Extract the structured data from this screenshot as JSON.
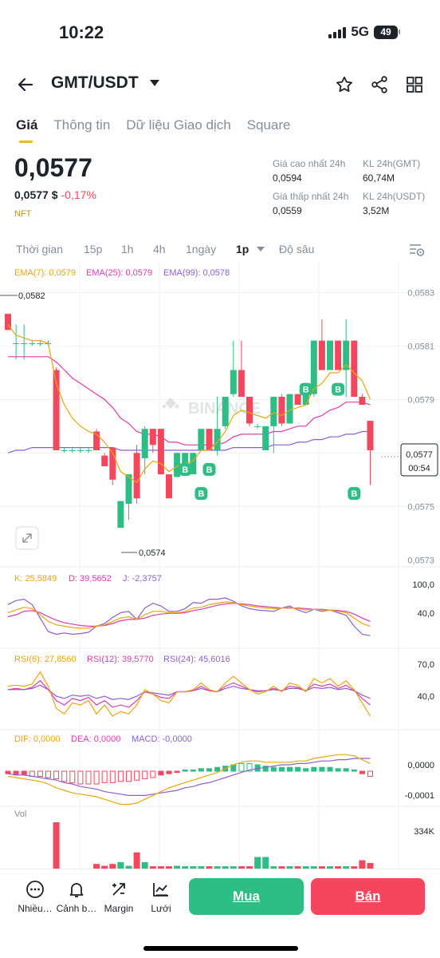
{
  "status": {
    "time": "10:22",
    "network": "5G",
    "battery": "49"
  },
  "header": {
    "pair": "GMT/USDT"
  },
  "tabs": [
    {
      "label": "Giá"
    },
    {
      "label": "Thông tin"
    },
    {
      "label": "Dữ liệu Giao dịch"
    },
    {
      "label": "Square"
    }
  ],
  "ticker": {
    "price": "0,0577",
    "usd_price": "0,0577 $",
    "change": "-0,17%",
    "tag": "NFT",
    "high_label": "Giá cao nhất 24h",
    "high_value": "0,0594",
    "low_label": "Giá thấp nhất 24h",
    "low_value": "0,0559",
    "vol_base_label": "KL 24h(GMT)",
    "vol_base_value": "60,74M",
    "vol_quote_label": "KL 24h(USDT)",
    "vol_quote_value": "3,52M"
  },
  "intervals": {
    "items": [
      "Thời gian",
      "15p",
      "1h",
      "4h",
      "1ngày",
      "1p",
      "Độ sâu"
    ],
    "active": "1p"
  },
  "colors": {
    "up": "#2ebd85",
    "down": "#f6465d",
    "accent": "#f0b90b",
    "ema7": "#e9a70d",
    "ema25": "#e03bb0",
    "ema99": "#8e5fcf"
  },
  "chart_data": {
    "type": "candlestick",
    "legend": {
      "ema7": "EMA(7): 0,0579",
      "ema25": "EMA(25): 0,0579",
      "ema99": "EMA(99): 0,0578"
    },
    "y_ticks": [
      "0,0583",
      "0,0581",
      "0,0579",
      "0,0577",
      "0,0575",
      "0,0573"
    ],
    "ylim": [
      0.05728,
      0.05834
    ],
    "high_marker": "0,0582",
    "low_marker": "0,0574",
    "current_price": "0,0577",
    "countdown": "00:54",
    "watermark": "BINANCE",
    "buy_markers": [
      {
        "index": 22,
        "price": 0.05768
      },
      {
        "index": 24,
        "price": 0.05759
      },
      {
        "index": 25,
        "price": 0.05768
      },
      {
        "index": 37,
        "price": 0.05798
      },
      {
        "index": 41,
        "price": 0.05798
      },
      {
        "index": 43,
        "price": 0.05759
      }
    ],
    "candles": [
      {
        "o": 0.05822,
        "h": 0.05822,
        "l": 0.05816,
        "c": 0.05816
      },
      {
        "o": 0.05811,
        "h": 0.05818,
        "l": 0.05805,
        "c": 0.05811
      },
      {
        "o": 0.05811,
        "h": 0.05818,
        "l": 0.05805,
        "c": 0.05811
      },
      {
        "o": 0.05811,
        "h": 0.05812,
        "l": 0.0581,
        "c": 0.05811
      },
      {
        "o": 0.05811,
        "h": 0.05812,
        "l": 0.0581,
        "c": 0.05811
      },
      {
        "o": 0.05811,
        "h": 0.05812,
        "l": 0.0581,
        "c": 0.05811
      },
      {
        "o": 0.05801,
        "h": 0.05802,
        "l": 0.05771,
        "c": 0.05771
      },
      {
        "o": 0.05771,
        "h": 0.05772,
        "l": 0.0577,
        "c": 0.05771
      },
      {
        "o": 0.05771,
        "h": 0.05772,
        "l": 0.0577,
        "c": 0.05771
      },
      {
        "o": 0.05771,
        "h": 0.05772,
        "l": 0.0577,
        "c": 0.05771
      },
      {
        "o": 0.05771,
        "h": 0.05772,
        "l": 0.0577,
        "c": 0.05771
      },
      {
        "o": 0.05778,
        "h": 0.05779,
        "l": 0.05771,
        "c": 0.05771
      },
      {
        "o": 0.05769,
        "h": 0.0577,
        "l": 0.05765,
        "c": 0.05765
      },
      {
        "o": 0.05772,
        "h": 0.05772,
        "l": 0.05758,
        "c": 0.0576
      },
      {
        "o": 0.05742,
        "h": 0.05752,
        "l": 0.05742,
        "c": 0.05752
      },
      {
        "o": 0.05751,
        "h": 0.05762,
        "l": 0.05745,
        "c": 0.05762
      },
      {
        "o": 0.0577,
        "h": 0.05773,
        "l": 0.05751,
        "c": 0.05753
      },
      {
        "o": 0.05768,
        "h": 0.0578,
        "l": 0.05762,
        "c": 0.05779
      },
      {
        "o": 0.05779,
        "h": 0.05779,
        "l": 0.0577,
        "c": 0.05773
      },
      {
        "o": 0.05779,
        "h": 0.05779,
        "l": 0.05762,
        "c": 0.05762
      },
      {
        "o": 0.05762,
        "h": 0.05762,
        "l": 0.05753,
        "c": 0.05753
      },
      {
        "o": 0.05761,
        "h": 0.0577,
        "l": 0.05761,
        "c": 0.0577
      },
      {
        "o": 0.05762,
        "h": 0.0577,
        "l": 0.05762,
        "c": 0.0577
      },
      {
        "o": 0.05762,
        "h": 0.0577,
        "l": 0.05762,
        "c": 0.0577
      },
      {
        "o": 0.05771,
        "h": 0.05779,
        "l": 0.05771,
        "c": 0.05779
      },
      {
        "o": 0.05779,
        "h": 0.05779,
        "l": 0.05771,
        "c": 0.05771
      },
      {
        "o": 0.05771,
        "h": 0.05791,
        "l": 0.05769,
        "c": 0.05779
      },
      {
        "o": 0.0578,
        "h": 0.05791,
        "l": 0.05779,
        "c": 0.05791
      },
      {
        "o": 0.05792,
        "h": 0.05812,
        "l": 0.05791,
        "c": 0.05801
      },
      {
        "o": 0.05801,
        "h": 0.05812,
        "l": 0.05791,
        "c": 0.05791
      },
      {
        "o": 0.05791,
        "h": 0.05791,
        "l": 0.0578,
        "c": 0.05781
      },
      {
        "o": 0.0578,
        "h": 0.05781,
        "l": 0.05779,
        "c": 0.0578
      },
      {
        "o": 0.05771,
        "h": 0.0578,
        "l": 0.05771,
        "c": 0.0578
      },
      {
        "o": 0.0578,
        "h": 0.05791,
        "l": 0.0577,
        "c": 0.05791
      },
      {
        "o": 0.05791,
        "h": 0.05792,
        "l": 0.0578,
        "c": 0.05781
      },
      {
        "o": 0.05781,
        "h": 0.05792,
        "l": 0.05781,
        "c": 0.05792
      },
      {
        "o": 0.05792,
        "h": 0.05792,
        "l": 0.05788,
        "c": 0.05788
      },
      {
        "o": 0.05788,
        "h": 0.05792,
        "l": 0.05788,
        "c": 0.05792
      },
      {
        "o": 0.05792,
        "h": 0.05812,
        "l": 0.05791,
        "c": 0.05812
      },
      {
        "o": 0.05812,
        "h": 0.0582,
        "l": 0.05801,
        "c": 0.05801
      },
      {
        "o": 0.05801,
        "h": 0.05812,
        "l": 0.05801,
        "c": 0.05812
      },
      {
        "o": 0.05812,
        "h": 0.05812,
        "l": 0.05801,
        "c": 0.05801
      },
      {
        "o": 0.05801,
        "h": 0.0582,
        "l": 0.05791,
        "c": 0.05812
      },
      {
        "o": 0.05812,
        "h": 0.05812,
        "l": 0.05791,
        "c": 0.05791
      },
      {
        "o": 0.05791,
        "h": 0.05792,
        "l": 0.05788,
        "c": 0.05788
      },
      {
        "o": 0.05782,
        "h": 0.05782,
        "l": 0.05758,
        "c": 0.05771
      }
    ],
    "ema7": [
      0.05818,
      0.05814,
      0.05813,
      0.05812,
      0.05812,
      0.05811,
      0.05796,
      0.05788,
      0.05783,
      0.0578,
      0.05778,
      0.05777,
      0.05774,
      0.0577,
      0.05763,
      0.05761,
      0.05759,
      0.05764,
      0.05767,
      0.05766,
      0.05763,
      0.05765,
      0.05766,
      0.05767,
      0.05771,
      0.05771,
      0.05774,
      0.05778,
      0.05784,
      0.05786,
      0.05785,
      0.05784,
      0.05783,
      0.05785,
      0.05784,
      0.05786,
      0.05787,
      0.05788,
      0.05794,
      0.05796,
      0.058,
      0.058,
      0.05803,
      0.058,
      0.05797,
      0.0579
    ],
    "ema25": [
      0.05806,
      0.05806,
      0.05806,
      0.05806,
      0.05806,
      0.05806,
      0.05804,
      0.05801,
      0.05798,
      0.05796,
      0.05794,
      0.05792,
      0.0579,
      0.05787,
      0.05783,
      0.05781,
      0.05778,
      0.05777,
      0.05777,
      0.05776,
      0.05774,
      0.05774,
      0.05773,
      0.05773,
      0.05773,
      0.05773,
      0.05773,
      0.05774,
      0.05776,
      0.05777,
      0.05777,
      0.05777,
      0.05777,
      0.05778,
      0.05778,
      0.05779,
      0.0578,
      0.0578,
      0.05783,
      0.05784,
      0.05786,
      0.05787,
      0.05789,
      0.05789,
      0.05789,
      0.05788
    ],
    "ema99": [
      0.0577,
      0.05771,
      0.05771,
      0.05772,
      0.05772,
      0.05772,
      0.05772,
      0.05772,
      0.05772,
      0.05772,
      0.05772,
      0.05772,
      0.05772,
      0.05772,
      0.05771,
      0.05771,
      0.05771,
      0.05771,
      0.05771,
      0.05771,
      0.05771,
      0.05771,
      0.05771,
      0.05771,
      0.05771,
      0.05771,
      0.05771,
      0.05771,
      0.05772,
      0.05772,
      0.05772,
      0.05772,
      0.05772,
      0.05773,
      0.05773,
      0.05773,
      0.05774,
      0.05774,
      0.05775,
      0.05775,
      0.05776,
      0.05776,
      0.05777,
      0.05777,
      0.05778,
      0.05778
    ],
    "kdj": {
      "legend": {
        "k": "K: 25,5849",
        "d": "D: 39,5652",
        "j": "J: -2,3757"
      },
      "y_ticks": [
        "100,0",
        "40,0"
      ],
      "k": [
        58,
        62,
        66,
        64,
        55,
        45,
        40,
        38,
        36,
        35,
        35,
        38,
        40,
        45,
        50,
        52,
        48,
        55,
        60,
        60,
        58,
        58,
        60,
        65,
        66,
        70,
        72,
        74,
        73,
        70,
        68,
        66,
        65,
        64,
        65,
        66,
        64,
        62,
        63,
        62,
        62,
        60,
        58,
        50,
        42,
        38
      ],
      "d": [
        52,
        55,
        60,
        61,
        58,
        52,
        47,
        43,
        41,
        39,
        38,
        38,
        39,
        42,
        46,
        48,
        48,
        50,
        54,
        56,
        57,
        57,
        58,
        61,
        63,
        66,
        69,
        71,
        72,
        71,
        70,
        68,
        67,
        66,
        65,
        65,
        65,
        64,
        63,
        63,
        62,
        61,
        60,
        56,
        50,
        45
      ],
      "j": [
        70,
        76,
        78,
        70,
        50,
        30,
        26,
        28,
        26,
        27,
        29,
        38,
        42,
        51,
        58,
        60,
        48,
        65,
        72,
        68,
        60,
        60,
        64,
        73,
        72,
        78,
        78,
        80,
        75,
        68,
        64,
        62,
        61,
        60,
        65,
        68,
        62,
        58,
        63,
        60,
        62,
        58,
        54,
        38,
        26,
        24
      ]
    },
    "rsi": {
      "legend": {
        "r6": "RSI(6): 27,8560",
        "r12": "RSI(12): 39,5770",
        "r24": "RSI(24): 45,6016"
      },
      "y_ticks": [
        "70,0",
        "40,0"
      ],
      "r6": [
        55,
        56,
        55,
        57,
        68,
        55,
        35,
        30,
        40,
        38,
        42,
        30,
        38,
        28,
        32,
        30,
        38,
        52,
        48,
        42,
        40,
        50,
        50,
        52,
        58,
        52,
        50,
        58,
        64,
        58,
        52,
        48,
        50,
        55,
        50,
        58,
        56,
        50,
        62,
        58,
        62,
        55,
        60,
        52,
        40,
        28
      ],
      "r12": [
        52,
        53,
        52,
        54,
        60,
        52,
        42,
        38,
        44,
        42,
        45,
        38,
        42,
        36,
        38,
        36,
        42,
        50,
        48,
        45,
        44,
        50,
        50,
        51,
        55,
        51,
        50,
        55,
        58,
        55,
        52,
        50,
        51,
        53,
        51,
        55,
        54,
        51,
        57,
        55,
        57,
        53,
        56,
        51,
        44,
        38
      ],
      "r24": [
        52,
        52,
        52,
        53,
        56,
        52,
        46,
        44,
        47,
        46,
        47,
        44,
        46,
        43,
        44,
        43,
        46,
        50,
        49,
        48,
        47,
        50,
        50,
        51,
        53,
        51,
        50,
        53,
        55,
        53,
        52,
        51,
        51,
        52,
        51,
        53,
        53,
        51,
        54,
        53,
        54,
        52,
        53,
        51,
        47,
        44
      ]
    },
    "macd": {
      "legend": {
        "dif": "DIF: 0,0000",
        "dea": "DEA: 0,0000",
        "macd": "MACD: -0,0000"
      },
      "y_ticks": [
        "0,0000",
        "-0,0001"
      ],
      "hist": [
        -2,
        -3,
        -3,
        -4,
        -4,
        -5,
        -6,
        -8,
        -9,
        -10,
        -10,
        -10,
        -9,
        -9,
        -8,
        -8,
        -7,
        -6,
        -5,
        -3,
        -2,
        -1,
        1,
        1,
        2,
        2,
        3,
        4,
        5,
        6,
        6,
        5,
        4,
        3,
        3,
        3,
        3,
        2,
        3,
        3,
        3,
        2,
        2,
        1,
        -2,
        -4
      ],
      "dif": [
        -4,
        -5,
        -6,
        -7,
        -8,
        -10,
        -13,
        -15,
        -17,
        -18,
        -19,
        -20,
        -22,
        -24,
        -26,
        -26,
        -25,
        -22,
        -19,
        -16,
        -13,
        -11,
        -9,
        -7,
        -5,
        -3,
        -1,
        2,
        5,
        7,
        8,
        8,
        7,
        7,
        7,
        7,
        8,
        8,
        10,
        11,
        12,
        13,
        13,
        12,
        9,
        6
      ],
      "dea": [
        -2,
        -3,
        -3,
        -4,
        -5,
        -6,
        -7,
        -9,
        -10,
        -12,
        -13,
        -14,
        -16,
        -17,
        -18,
        -19,
        -19,
        -19,
        -18,
        -17,
        -16,
        -15,
        -13,
        -12,
        -10,
        -9,
        -7,
        -5,
        -3,
        -1,
        1,
        2,
        3,
        4,
        5,
        5,
        6,
        6,
        7,
        8,
        8,
        9,
        9,
        10,
        10,
        10
      ]
    },
    "volume": {
      "label": "Vol",
      "y_tick": "334K",
      "values": [
        0,
        0,
        0,
        0,
        0,
        0,
        100,
        0,
        0,
        0,
        0,
        10,
        6,
        10,
        14,
        6,
        35,
        14,
        5,
        5,
        5,
        6,
        5,
        5,
        5,
        5,
        5,
        5,
        5,
        5,
        5,
        25,
        25,
        5,
        5,
        5,
        5,
        5,
        5,
        5,
        5,
        5,
        5,
        5,
        18,
        12
      ]
    }
  },
  "bottom": {
    "more": "Nhiều…",
    "alert": "Cảnh b…",
    "margin": "Margin",
    "grid": "Lưới",
    "buy": "Mua",
    "sell": "Bán"
  }
}
